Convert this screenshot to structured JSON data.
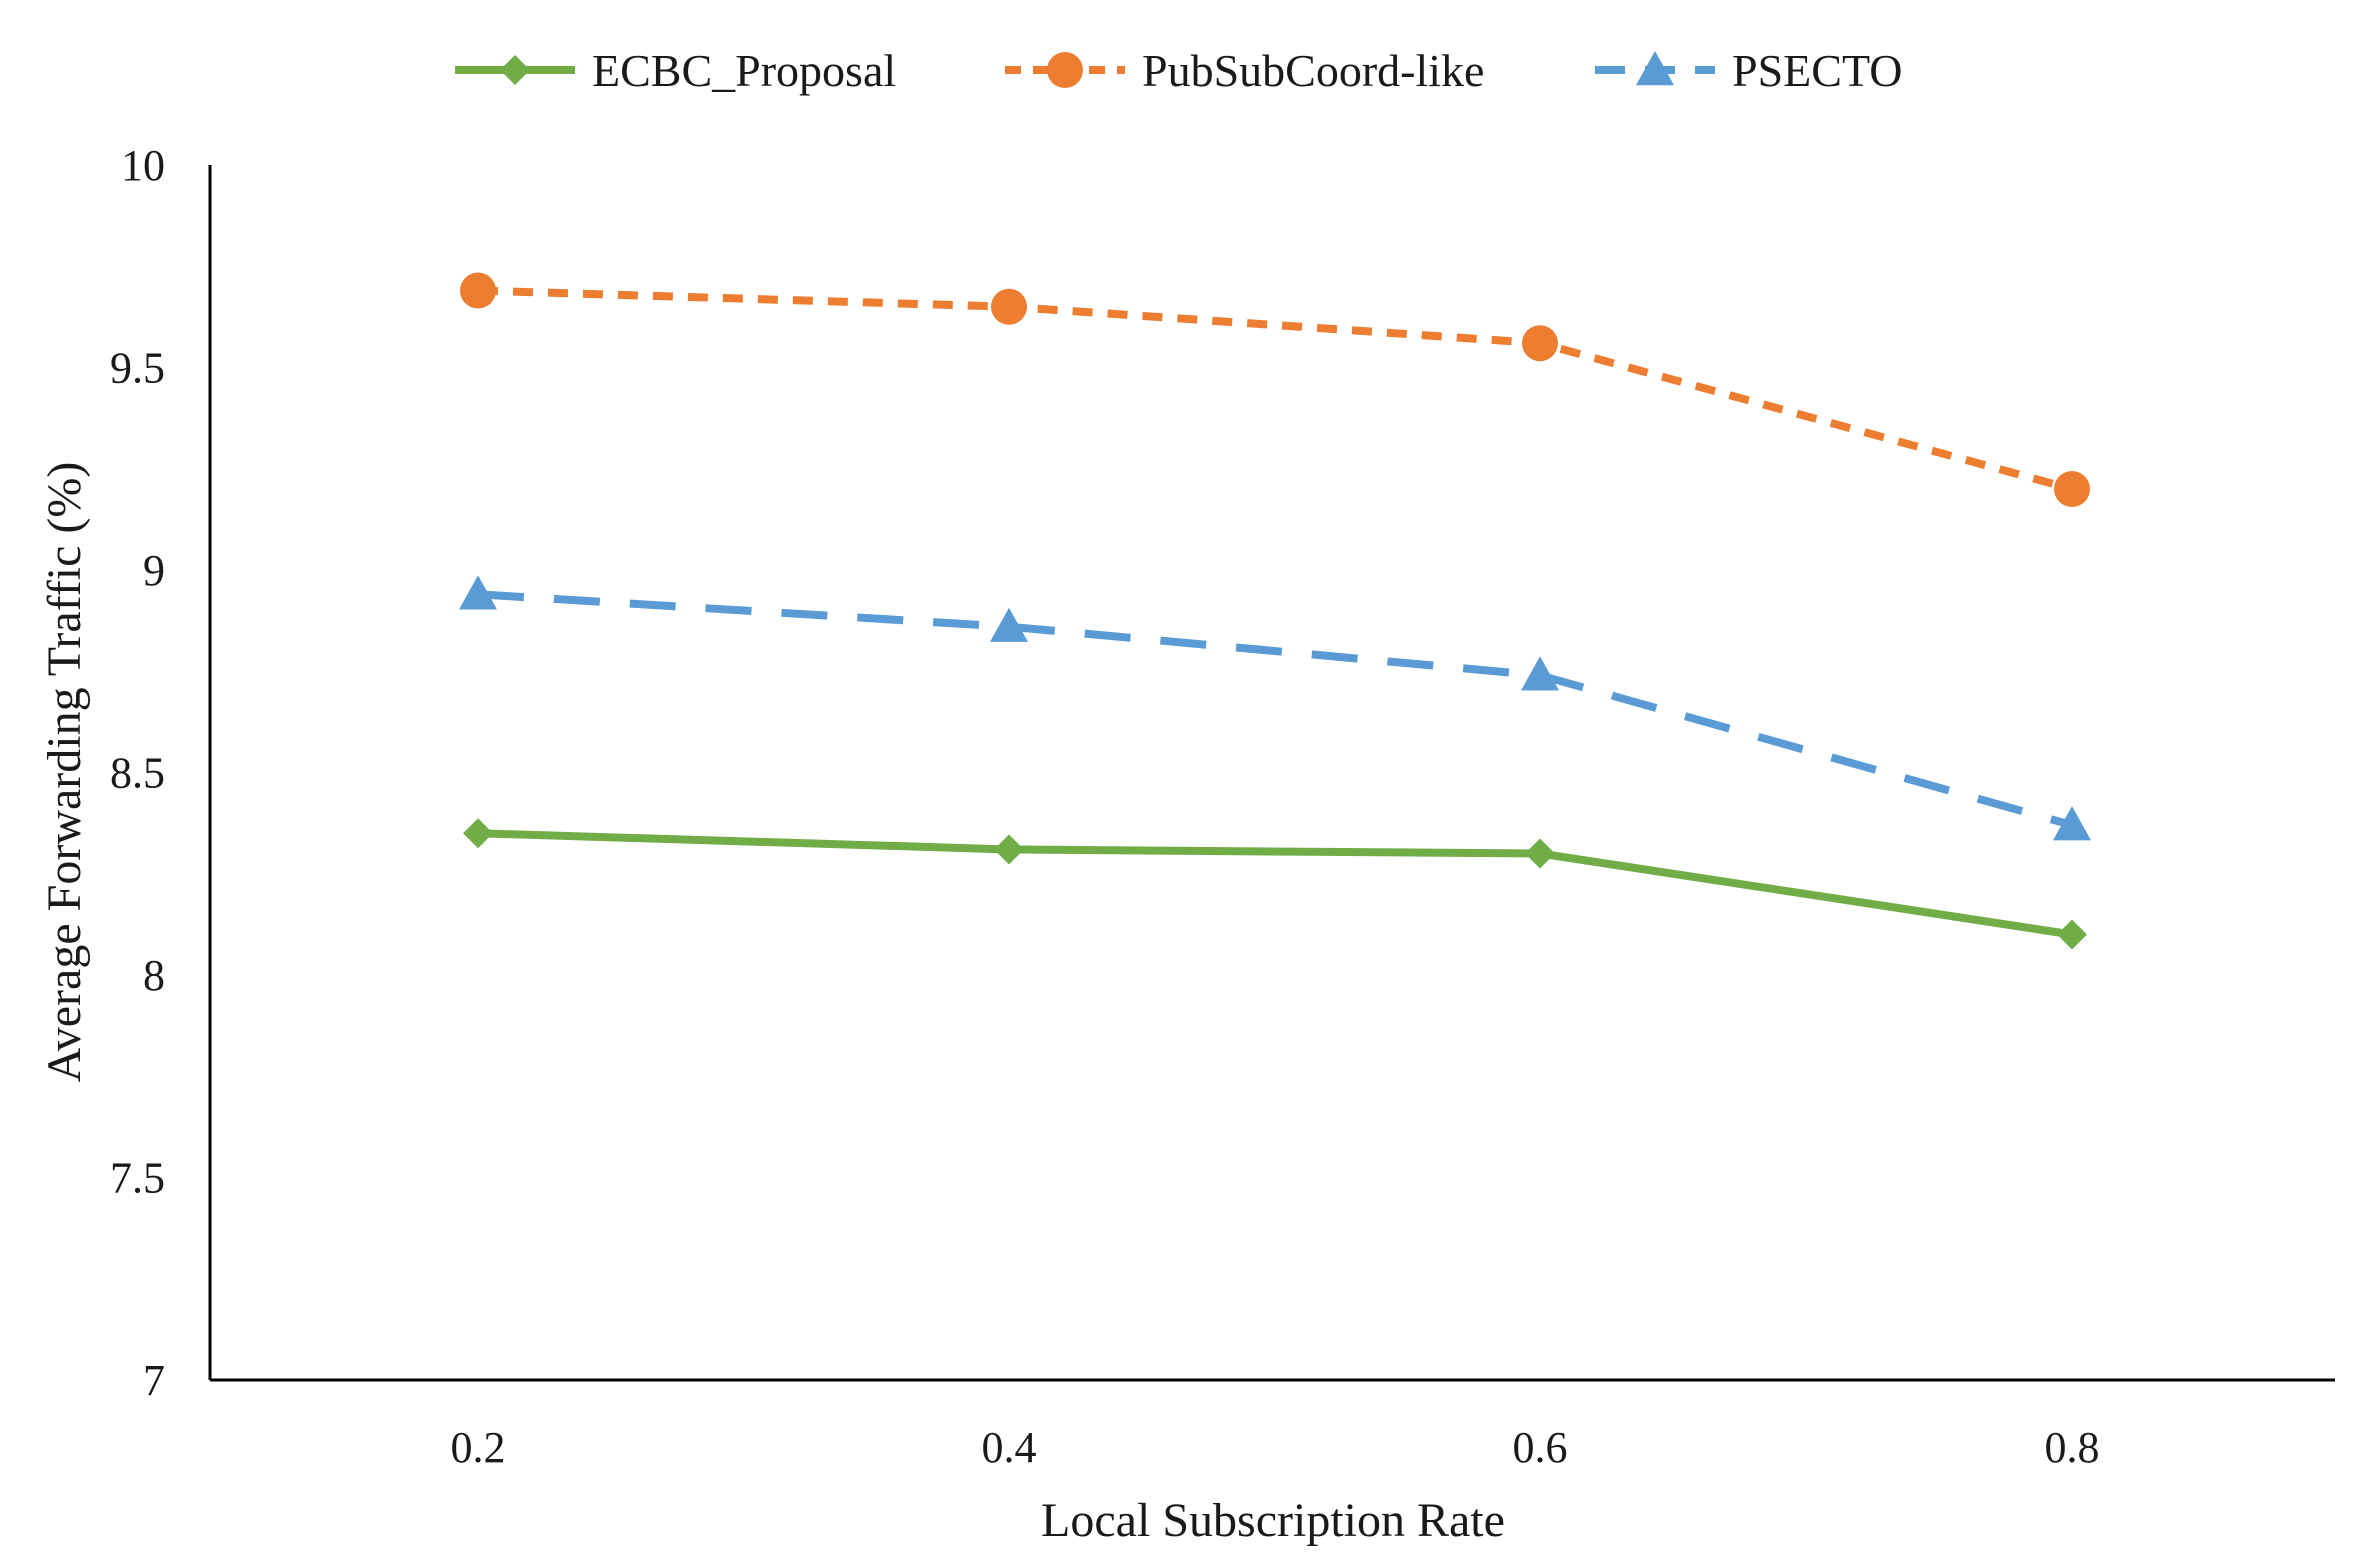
{
  "chart_data": {
    "type": "line",
    "title": "",
    "xlabel": "Local Subscription  Rate",
    "ylabel": "Average Forwarding Traffic (%)",
    "x": [
      0.2,
      0.4,
      0.6,
      0.8
    ],
    "x_tick_labels": [
      "0.2",
      "0.4",
      "0.6",
      "0.8"
    ],
    "ylim": [
      7,
      10
    ],
    "y_ticks": [
      7,
      7.5,
      8,
      8.5,
      9,
      9.5,
      10
    ],
    "y_tick_labels": [
      "7",
      "7.5",
      "8",
      "8.5",
      "9",
      "9.5",
      "10"
    ],
    "grid": false,
    "legend_position": "top",
    "series": [
      {
        "name": "ECBC_Proposal",
        "values": [
          8.35,
          8.31,
          8.3,
          8.1
        ],
        "color": "#70ad47",
        "dash": "solid",
        "marker": "diamond"
      },
      {
        "name": "PubSubCoord-like",
        "values": [
          9.69,
          9.65,
          9.56,
          9.2
        ],
        "color": "#ed7d31",
        "dash": "short-dash",
        "marker": "circle"
      },
      {
        "name": "PSECTO",
        "values": [
          8.94,
          8.86,
          8.74,
          8.37
        ],
        "color": "#5b9bd5",
        "dash": "long-dash",
        "marker": "triangle"
      }
    ]
  }
}
